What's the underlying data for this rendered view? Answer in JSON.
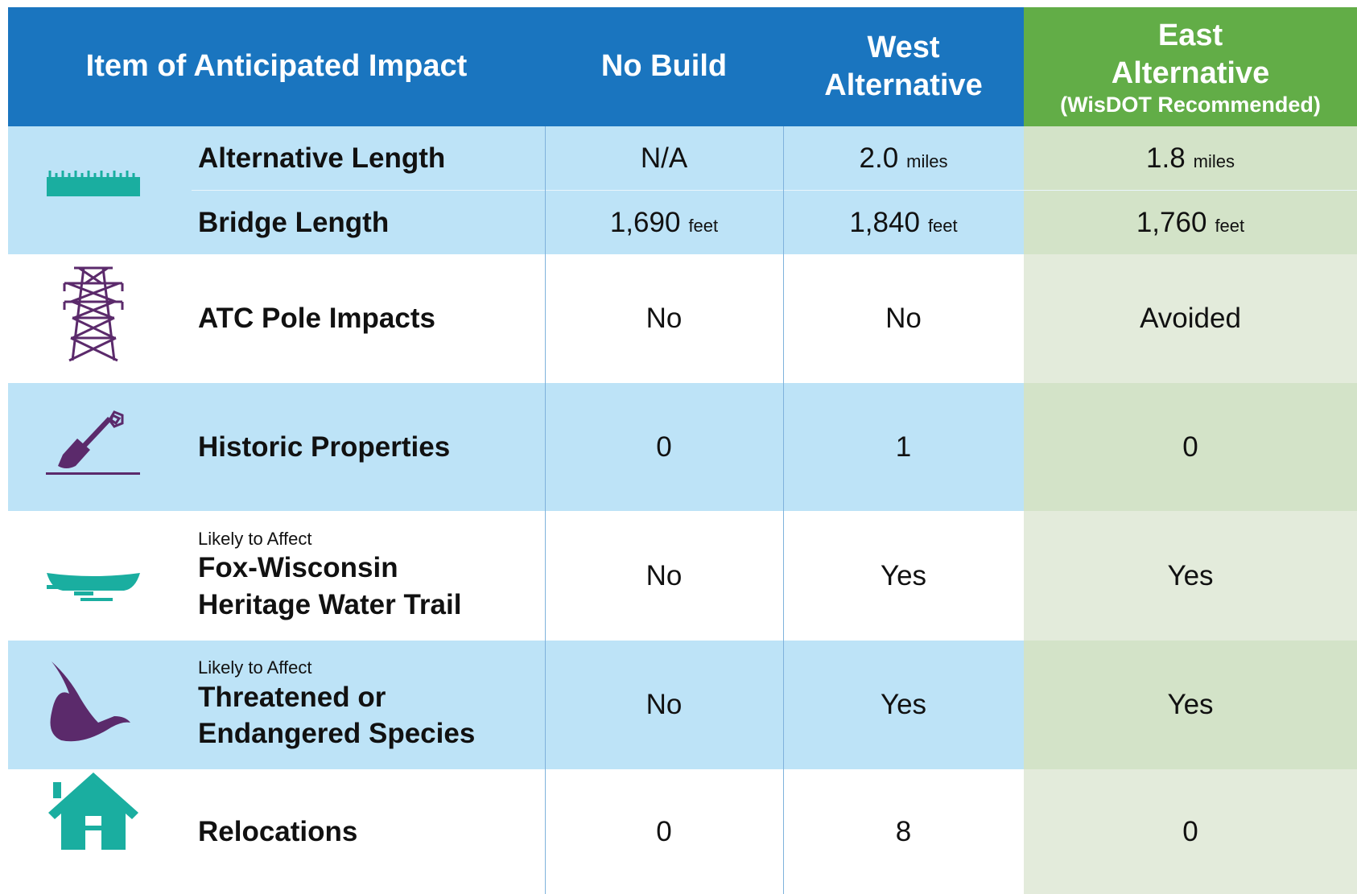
{
  "header": {
    "columns": [
      {
        "title": "Item of Anticipated Impact"
      },
      {
        "title": "No Build"
      },
      {
        "title": "West Alternative"
      },
      {
        "title": "East Alternative",
        "subtitle": "(WisDOT Recommended)"
      }
    ]
  },
  "rows": [
    {
      "label": "Alternative Length",
      "cells": [
        {
          "value": "N/A"
        },
        {
          "value": "2.0",
          "unit": "miles"
        },
        {
          "value": "1.8",
          "unit": "miles"
        }
      ]
    },
    {
      "label": "Bridge Length",
      "cells": [
        {
          "value": "1,690",
          "unit": "feet"
        },
        {
          "value": "1,840",
          "unit": "feet"
        },
        {
          "value": "1,760",
          "unit": "feet"
        }
      ]
    },
    {
      "label": "ATC Pole Impacts",
      "cells": [
        {
          "value": "No"
        },
        {
          "value": "No"
        },
        {
          "value": "Avoided"
        }
      ]
    },
    {
      "label": "Historic Properties",
      "cells": [
        {
          "value": "0"
        },
        {
          "value": "1"
        },
        {
          "value": "0"
        }
      ]
    },
    {
      "note": "Likely to Affect",
      "label": "Fox-Wisconsin Heritage Water Trail",
      "cells": [
        {
          "value": "No"
        },
        {
          "value": "Yes"
        },
        {
          "value": "Yes"
        }
      ]
    },
    {
      "note": "Likely to Affect",
      "label": "Threatened or Endangered Species",
      "cells": [
        {
          "value": "No"
        },
        {
          "value": "Yes"
        },
        {
          "value": "Yes"
        }
      ]
    },
    {
      "label": "Relocations",
      "cells": [
        {
          "value": "0"
        },
        {
          "value": "8"
        },
        {
          "value": "0"
        }
      ]
    }
  ]
}
